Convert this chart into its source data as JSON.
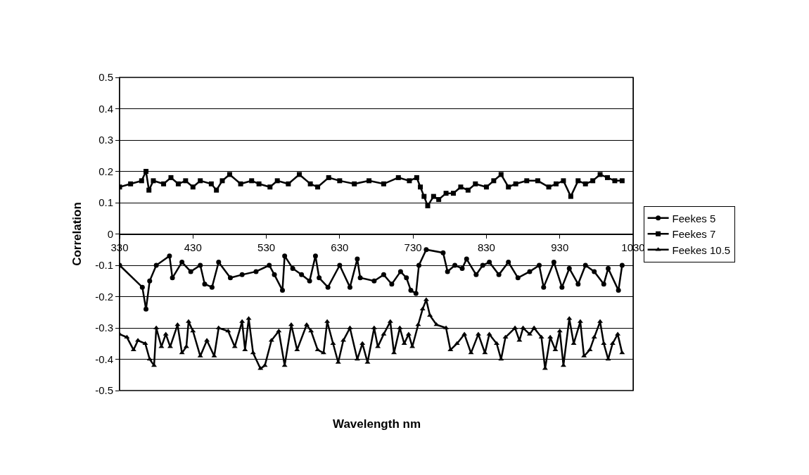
{
  "chart_data": {
    "type": "line",
    "xlabel": "Wavelength nm",
    "ylabel": "Correlation",
    "xlim": [
      330,
      1030
    ],
    "xticks": [
      330,
      430,
      530,
      630,
      730,
      830,
      930,
      1030
    ],
    "ylim": [
      -0.5,
      0.5
    ],
    "yticks": [
      -0.5,
      -0.4,
      -0.3,
      -0.2,
      -0.1,
      0,
      0.1,
      0.2,
      0.3,
      0.4,
      0.5
    ],
    "grid": "y",
    "legend": "right",
    "line_style": "solid",
    "series": [
      {
        "name": "Feekes 5",
        "color": "#000000",
        "marker": "circle",
        "x": [
          330,
          361,
          366,
          371,
          380,
          398,
          402,
          415,
          427,
          440,
          446,
          456,
          465,
          481,
          497,
          516,
          534,
          541,
          552,
          555,
          566,
          578,
          589,
          597,
          602,
          614,
          630,
          644,
          654,
          658,
          677,
          690,
          701,
          713,
          721,
          727,
          734,
          738,
          748,
          771,
          777,
          787,
          797,
          803,
          816,
          825,
          834,
          847,
          860,
          873,
          889,
          902,
          908,
          922,
          933,
          943,
          955,
          965,
          977,
          990,
          996,
          1010,
          1015
        ],
        "values": [
          -0.1,
          -0.17,
          -0.24,
          -0.15,
          -0.1,
          -0.07,
          -0.14,
          -0.09,
          -0.12,
          -0.1,
          -0.16,
          -0.17,
          -0.09,
          -0.14,
          -0.13,
          -0.12,
          -0.1,
          -0.13,
          -0.18,
          -0.07,
          -0.11,
          -0.13,
          -0.15,
          -0.07,
          -0.14,
          -0.17,
          -0.1,
          -0.17,
          -0.08,
          -0.14,
          -0.15,
          -0.13,
          -0.16,
          -0.12,
          -0.14,
          -0.18,
          -0.19,
          -0.1,
          -0.05,
          -0.06,
          -0.12,
          -0.1,
          -0.11,
          -0.08,
          -0.13,
          -0.1,
          -0.09,
          -0.13,
          -0.09,
          -0.14,
          -0.12,
          -0.1,
          -0.17,
          -0.09,
          -0.17,
          -0.11,
          -0.16,
          -0.1,
          -0.12,
          -0.16,
          -0.11,
          -0.18,
          -0.1
        ]
      },
      {
        "name": "Feekes 7",
        "color": "#000000",
        "marker": "square",
        "x": [
          330,
          345,
          360,
          366,
          370,
          376,
          390,
          400,
          410,
          420,
          430,
          440,
          455,
          462,
          470,
          480,
          495,
          510,
          520,
          535,
          545,
          560,
          575,
          590,
          600,
          615,
          630,
          650,
          670,
          690,
          710,
          725,
          735,
          740,
          745,
          750,
          758,
          765,
          775,
          785,
          795,
          805,
          815,
          830,
          840,
          850,
          860,
          870,
          885,
          900,
          915,
          925,
          935,
          945,
          955,
          965,
          975,
          985,
          995,
          1005,
          1015
        ],
        "values": [
          0.15,
          0.16,
          0.17,
          0.2,
          0.14,
          0.17,
          0.16,
          0.18,
          0.16,
          0.17,
          0.15,
          0.17,
          0.16,
          0.14,
          0.17,
          0.19,
          0.16,
          0.17,
          0.16,
          0.15,
          0.17,
          0.16,
          0.19,
          0.16,
          0.15,
          0.18,
          0.17,
          0.16,
          0.17,
          0.16,
          0.18,
          0.17,
          0.18,
          0.15,
          0.12,
          0.09,
          0.12,
          0.11,
          0.13,
          0.13,
          0.15,
          0.14,
          0.16,
          0.15,
          0.17,
          0.19,
          0.15,
          0.16,
          0.17,
          0.17,
          0.15,
          0.16,
          0.17,
          0.12,
          0.17,
          0.16,
          0.17,
          0.19,
          0.18,
          0.17,
          0.17
        ]
      },
      {
        "name": "Feekes 10.5",
        "color": "#000000",
        "marker": "triangle",
        "x": [
          330,
          340,
          349,
          355,
          365,
          371,
          377,
          380,
          387,
          393,
          399,
          409,
          415,
          421,
          424,
          430,
          440,
          449,
          459,
          465,
          478,
          487,
          497,
          501,
          506,
          512,
          522,
          528,
          537,
          547,
          555,
          564,
          572,
          585,
          591,
          600,
          608,
          613,
          621,
          628,
          635,
          644,
          654,
          661,
          668,
          677,
          682,
          690,
          699,
          704,
          712,
          718,
          724,
          729,
          737,
          743,
          748,
          753,
          762,
          775,
          781,
          790,
          800,
          809,
          819,
          828,
          834,
          844,
          850,
          856,
          869,
          875,
          880,
          889,
          895,
          905,
          910,
          917,
          924,
          930,
          935,
          943,
          949,
          958,
          963,
          971,
          977,
          985,
          990,
          996,
          1002,
          1009,
          1015
        ],
        "values": [
          -0.32,
          -0.33,
          -0.37,
          -0.34,
          -0.35,
          -0.4,
          -0.42,
          -0.3,
          -0.36,
          -0.32,
          -0.36,
          -0.29,
          -0.38,
          -0.36,
          -0.28,
          -0.31,
          -0.39,
          -0.34,
          -0.39,
          -0.3,
          -0.31,
          -0.36,
          -0.28,
          -0.37,
          -0.27,
          -0.38,
          -0.43,
          -0.42,
          -0.34,
          -0.31,
          -0.42,
          -0.29,
          -0.37,
          -0.29,
          -0.31,
          -0.37,
          -0.38,
          -0.28,
          -0.35,
          -0.41,
          -0.34,
          -0.3,
          -0.4,
          -0.35,
          -0.41,
          -0.3,
          -0.36,
          -0.32,
          -0.28,
          -0.38,
          -0.3,
          -0.35,
          -0.32,
          -0.36,
          -0.29,
          -0.24,
          -0.21,
          -0.26,
          -0.29,
          -0.3,
          -0.37,
          -0.35,
          -0.32,
          -0.38,
          -0.32,
          -0.38,
          -0.32,
          -0.35,
          -0.4,
          -0.33,
          -0.3,
          -0.34,
          -0.3,
          -0.32,
          -0.3,
          -0.33,
          -0.43,
          -0.33,
          -0.37,
          -0.31,
          -0.42,
          -0.27,
          -0.35,
          -0.28,
          -0.39,
          -0.37,
          -0.33,
          -0.28,
          -0.35,
          -0.4,
          -0.35,
          -0.32,
          -0.38
        ]
      }
    ]
  }
}
